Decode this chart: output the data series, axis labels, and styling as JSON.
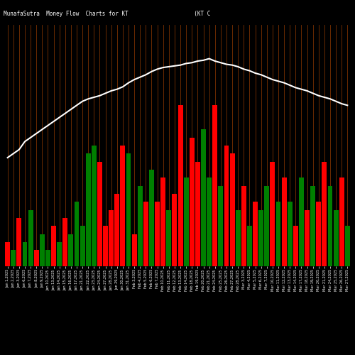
{
  "title": "MunafaSutra  Money Flow  Charts for KT                    (KT C                                                orporation) M",
  "background_color": "#000000",
  "line_color": "#ffffff",
  "grid_color": "#7B3000",
  "n_bars": 60,
  "bar_values": [
    3,
    2,
    6,
    3,
    7,
    2,
    4,
    2,
    5,
    3,
    6,
    4,
    8,
    5,
    14,
    15,
    13,
    5,
    7,
    9,
    15,
    14,
    4,
    10,
    8,
    12,
    8,
    11,
    7,
    9,
    20,
    11,
    16,
    13,
    17,
    11,
    20,
    10,
    15,
    14,
    7,
    10,
    5,
    8,
    7,
    10,
    13,
    8,
    11,
    8,
    5,
    11,
    7,
    10,
    8,
    13,
    10,
    7,
    11,
    5
  ],
  "bar_colors": [
    "red",
    "green",
    "red",
    "green",
    "green",
    "red",
    "green",
    "green",
    "red",
    "green",
    "red",
    "green",
    "green",
    "green",
    "green",
    "green",
    "red",
    "red",
    "red",
    "red",
    "red",
    "green",
    "red",
    "green",
    "red",
    "green",
    "red",
    "red",
    "green",
    "red",
    "red",
    "green",
    "red",
    "red",
    "green",
    "green",
    "red",
    "green",
    "red",
    "red",
    "green",
    "red",
    "green",
    "red",
    "green",
    "green",
    "red",
    "green",
    "red",
    "green",
    "red",
    "green",
    "red",
    "green",
    "red",
    "red",
    "green",
    "green",
    "red",
    "green"
  ],
  "line_values": [
    13.5,
    14.0,
    14.5,
    15.5,
    16.0,
    16.5,
    17.0,
    17.5,
    18.0,
    18.5,
    19.0,
    19.5,
    20.0,
    20.5,
    20.8,
    21.0,
    21.2,
    21.5,
    21.8,
    22.0,
    22.3,
    22.8,
    23.2,
    23.5,
    23.8,
    24.2,
    24.5,
    24.7,
    24.8,
    24.9,
    25.0,
    25.2,
    25.3,
    25.5,
    25.6,
    25.8,
    25.5,
    25.3,
    25.1,
    25.0,
    24.8,
    24.5,
    24.3,
    24.0,
    23.8,
    23.5,
    23.2,
    23.0,
    22.8,
    22.5,
    22.2,
    22.0,
    21.8,
    21.5,
    21.2,
    21.0,
    20.8,
    20.5,
    20.2,
    20.0
  ],
  "x_labels": [
    "Jan 1,2025",
    "Jan 2,2025",
    "Jan 3,2025",
    "Jan 6,2025",
    "Jan 7,2025",
    "Jan 8,2025",
    "Jan 9,2025",
    "Jan 10,2025",
    "Jan 13,2025",
    "Jan 14,2025",
    "Jan 15,2025",
    "Jan 16,2025",
    "Jan 17,2025",
    "Jan 21,2025",
    "Jan 22,2025",
    "Jan 23,2025",
    "Jan 24,2025",
    "Jan 27,2025",
    "Jan 28,2025",
    "Jan 29,2025",
    "Jan 30,2025",
    "Jan 31,2025",
    "Feb 3,2025",
    "Feb 4,2025",
    "Feb 5,2025",
    "Feb 6,2025",
    "Feb 7,2025",
    "Feb 10,2025",
    "Feb 11,2025",
    "Feb 12,2025",
    "Feb 13,2025",
    "Feb 14,2025",
    "Feb 18,2025",
    "Feb 19,2025",
    "Feb 20,2025",
    "Feb 21,2025",
    "Feb 24,2025",
    "Feb 25,2025",
    "Feb 26,2025",
    "Feb 27,2025",
    "Feb 28,2025",
    "Mar 3,2025",
    "Mar 4,2025",
    "Mar 5,2025",
    "Mar 6,2025",
    "Mar 7,2025",
    "Mar 10,2025",
    "Mar 11,2025",
    "Mar 12,2025",
    "Mar 13,2025",
    "Mar 14,2025",
    "Mar 17,2025",
    "Mar 18,2025",
    "Mar 19,2025",
    "Mar 20,2025",
    "Mar 21,2025",
    "Mar 24,2025",
    "Mar 25,2025",
    "Mar 26,2025",
    "Mar 27,2025"
  ],
  "ylim": [
    0,
    30
  ],
  "figsize": [
    5.0,
    5.0
  ],
  "dpi": 100,
  "title_fontsize": 5.5,
  "xlabel_fontsize": 3.5,
  "bar_width": 0.85
}
